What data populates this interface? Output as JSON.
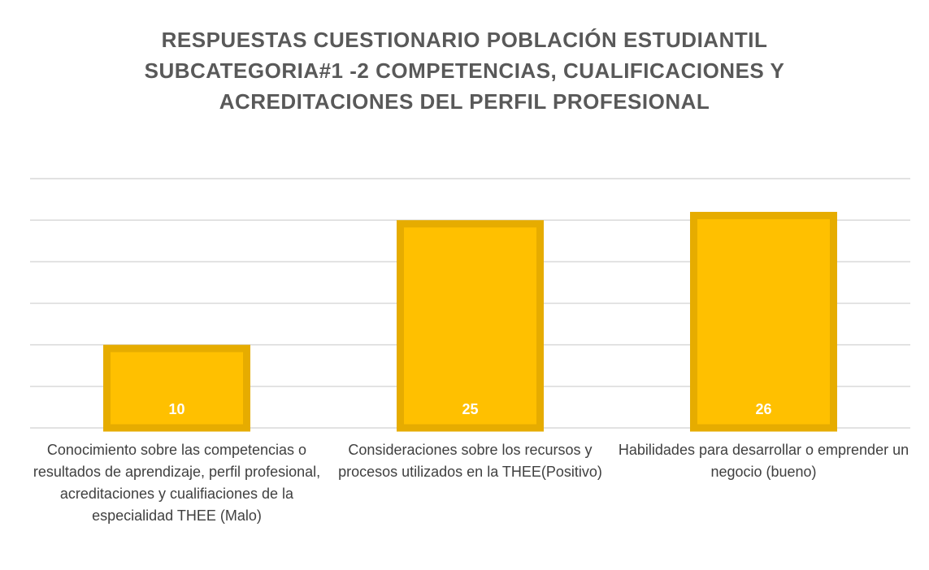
{
  "chart_data": {
    "type": "bar",
    "title": "RESPUESTAS CUESTIONARIO POBLACIÓN ESTUDIANTIL SUBCATEGORIA#1 -2 COMPETENCIAS, CUALIFICACIONES Y ACREDITACIONES DEL PERFIL PROFESIONAL",
    "categories": [
      "Conocimiento sobre las competencias o resultados de aprendizaje, perfil profesional, acreditaciones y cualifiaciones de la especialidad THEE (Malo)",
      "Consideraciones sobre los recursos y procesos utilizados en la THEE(Positivo)",
      "Habilidades para desarrollar o emprender un negocio (bueno)"
    ],
    "values": [
      10,
      25,
      26
    ],
    "color": "#FFC000",
    "edge_color": "#E6AC00",
    "ylim": [
      0,
      30
    ],
    "yticks": [
      0,
      5,
      10,
      15,
      20,
      25,
      30
    ],
    "grid": true
  }
}
